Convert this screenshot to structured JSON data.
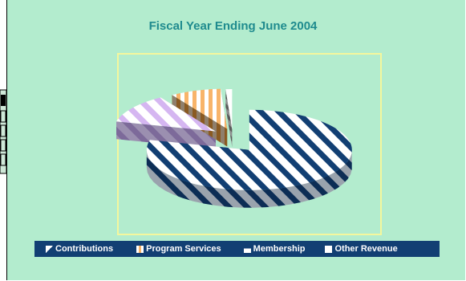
{
  "chart_data": {
    "type": "pie",
    "title": "Fiscal Year Ending June 2004",
    "categories": [
      "Contributions",
      "Program Services",
      "Membership",
      "Other Revenue"
    ],
    "values": [
      1,
      8,
      12,
      79
    ],
    "exploded": true,
    "legend_position": "bottom"
  },
  "colors": {
    "background": "#b3ecce",
    "legend_bg": "#123f73",
    "title": "#1f8b8e",
    "plot_border": "#f4f79d",
    "slices": [
      "#ffffff",
      "#f8b46a",
      "#d5b6f1",
      "#123f73"
    ]
  }
}
